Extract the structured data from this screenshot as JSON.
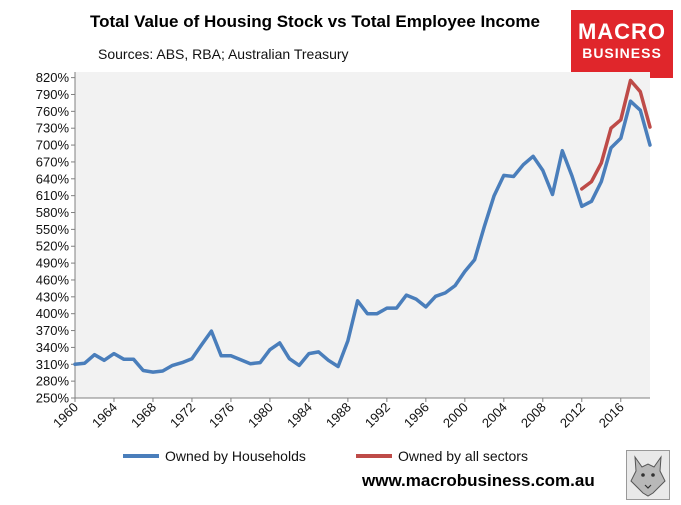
{
  "header": {
    "title": "Total Value of Housing Stock vs Total Employee Income",
    "subtitle": "Sources: ABS, RBA; Australian Treasury"
  },
  "logo": {
    "line1": "MACRO",
    "line2": "BUSINESS",
    "color": "#e0262b"
  },
  "footer": {
    "site": "www.macrobusiness.com.au"
  },
  "colors": {
    "households": "#4a7ebb",
    "all_sectors": "#be4b48",
    "plot_bg": "#f2f2f2"
  },
  "chart_data": {
    "type": "line",
    "title": "Total Value of Housing Stock vs Total Employee Income",
    "xlabel": "",
    "ylabel": "",
    "xlim": [
      1960,
      2019
    ],
    "ylim": [
      250,
      830
    ],
    "grid": false,
    "legend": "bottom",
    "y_ticks": [
      "250%",
      "280%",
      "310%",
      "340%",
      "370%",
      "400%",
      "430%",
      "460%",
      "490%",
      "520%",
      "550%",
      "580%",
      "610%",
      "640%",
      "670%",
      "700%",
      "730%",
      "760%",
      "790%",
      "820%"
    ],
    "x_ticks": [
      "1960",
      "1964",
      "1968",
      "1972",
      "1976",
      "1980",
      "1984",
      "1988",
      "1992",
      "1996",
      "2000",
      "2004",
      "2008",
      "2012",
      "2016"
    ],
    "series": [
      {
        "name": "Owned by Households",
        "color": "#4a7ebb",
        "x": [
          1960,
          1961,
          1962,
          1963,
          1964,
          1965,
          1966,
          1967,
          1968,
          1969,
          1970,
          1971,
          1972,
          1973,
          1974,
          1975,
          1976,
          1977,
          1978,
          1979,
          1980,
          1981,
          1982,
          1983,
          1984,
          1985,
          1986,
          1987,
          1988,
          1989,
          1990,
          1991,
          1992,
          1993,
          1994,
          1995,
          1996,
          1997,
          1998,
          1999,
          2000,
          2001,
          2002,
          2003,
          2004,
          2005,
          2006,
          2007,
          2008,
          2009,
          2010,
          2011,
          2012,
          2013,
          2014,
          2015,
          2016,
          2017,
          2018,
          2019
        ],
        "values": [
          310,
          312,
          327,
          317,
          329,
          319,
          319,
          299,
          296,
          298,
          308,
          313,
          320,
          345,
          369,
          325,
          325,
          318,
          311,
          313,
          336,
          348,
          320,
          308,
          329,
          332,
          317,
          306,
          352,
          423,
          400,
          400,
          410,
          410,
          433,
          426,
          412,
          431,
          437,
          450,
          475,
          496,
          555,
          610,
          646,
          644,
          665,
          680,
          655,
          612,
          690,
          645,
          591,
          600,
          635,
          695,
          712,
          778,
          762,
          700
        ]
      },
      {
        "name": "Owned by all sectors",
        "color": "#be4b48",
        "x": [
          2012,
          2013,
          2014,
          2015,
          2016,
          2017,
          2018,
          2019
        ],
        "values": [
          622,
          635,
          668,
          730,
          745,
          815,
          795,
          732
        ]
      }
    ]
  }
}
